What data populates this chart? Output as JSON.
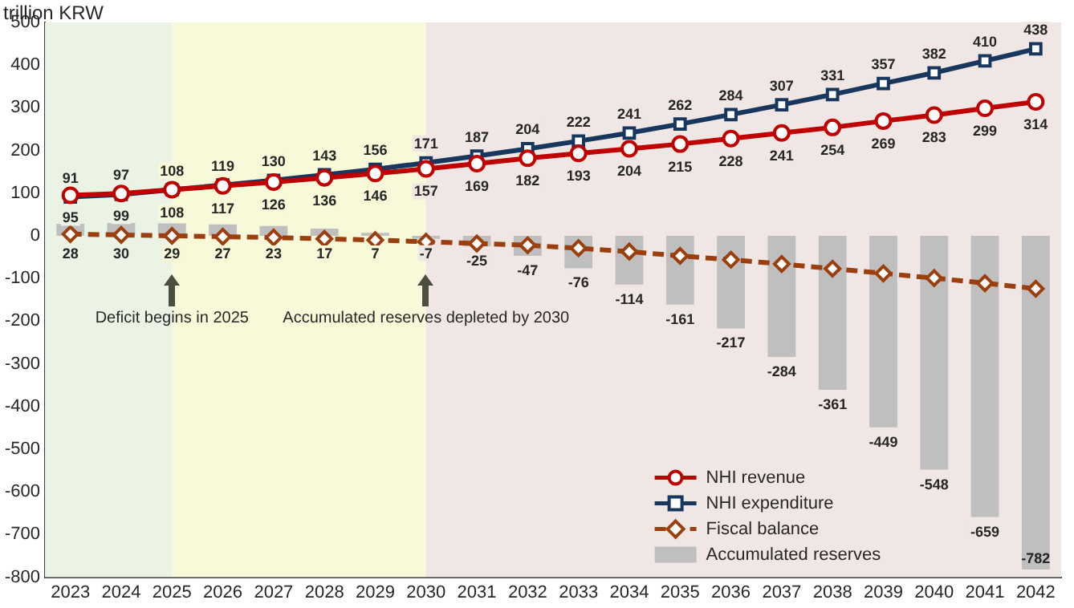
{
  "chart_data": {
    "type": "line",
    "ylabel": "trillion KRW",
    "categories": [
      "2023",
      "2024",
      "2025",
      "2026",
      "2027",
      "2028",
      "2029",
      "2030",
      "2031",
      "2032",
      "2033",
      "2034",
      "2035",
      "2036",
      "2037",
      "2038",
      "2039",
      "2040",
      "2041",
      "2042"
    ],
    "series": [
      {
        "name": "NHI revenue",
        "color": "#c00000",
        "marker": "circle",
        "line_style": "solid",
        "values": [
          95,
          99,
          108,
          117,
          126,
          136,
          146,
          157,
          169,
          182,
          193,
          204,
          215,
          228,
          241,
          254,
          269,
          283,
          299,
          314
        ],
        "value_labels": [
          "95",
          "99",
          "108",
          "117",
          "126",
          "136",
          "146",
          "157",
          "169",
          "182",
          "193",
          "204",
          "215",
          "228",
          "241",
          "254",
          "269",
          "283",
          "299",
          "314"
        ]
      },
      {
        "name": "NHI expenditure",
        "color": "#17375e",
        "marker": "square",
        "line_style": "solid",
        "values": [
          91,
          97,
          108,
          119,
          130,
          143,
          156,
          171,
          187,
          204,
          222,
          241,
          262,
          284,
          307,
          331,
          357,
          382,
          410,
          438
        ],
        "value_labels": [
          "91",
          "97",
          "108",
          "119",
          "130",
          "143",
          "156",
          "171",
          "187",
          "204",
          "222",
          "241",
          "262",
          "284",
          "307",
          "331",
          "357",
          "382",
          "410",
          "438"
        ]
      },
      {
        "name": "Fiscal balance",
        "color": "#9c3f0f",
        "marker": "diamond",
        "line_style": "dashed",
        "values": [
          4,
          2,
          0,
          -2,
          -4,
          -7,
          -10,
          -14,
          -18,
          -22,
          -29,
          -37,
          -47,
          -56,
          -66,
          -77,
          -88,
          -99,
          -111,
          -124
        ]
      },
      {
        "name": "Accumulated reserves",
        "type": "bar",
        "color": "#bfbfbf",
        "values": [
          28,
          30,
          29,
          27,
          23,
          17,
          7,
          -7,
          -25,
          -47,
          -76,
          -114,
          -161,
          -217,
          -284,
          -361,
          -449,
          -548,
          -659,
          -782
        ],
        "value_labels": [
          "28",
          "30",
          "29",
          "27",
          "23",
          "17",
          "7",
          "-7",
          "-25",
          "-47",
          "-76",
          "-114",
          "-161",
          "-217",
          "-284",
          "-361",
          "-449",
          "-548",
          "-659",
          "-782"
        ]
      }
    ],
    "ylim": [
      -800,
      500
    ],
    "yticks": [
      -800,
      -700,
      -600,
      -500,
      -400,
      -300,
      -200,
      -100,
      0,
      100,
      200,
      300,
      400,
      500
    ],
    "grid": false,
    "legend": "bottom right",
    "bands": [
      {
        "axis": "x",
        "from": "2023",
        "to": "2025",
        "color": "#eaf3e4"
      },
      {
        "axis": "x",
        "from": "2025",
        "to": "2030",
        "color": "#f7f9d8"
      },
      {
        "axis": "x",
        "from": "2030",
        "to": "2042",
        "color": "#f0e6e4"
      }
    ],
    "annotations": [
      {
        "text": "Deficit begins in 2025",
        "x": "2025",
        "y": -90
      },
      {
        "text": "Accumulated reserves depleted by 2030",
        "x": "2030",
        "y": -90
      }
    ]
  }
}
